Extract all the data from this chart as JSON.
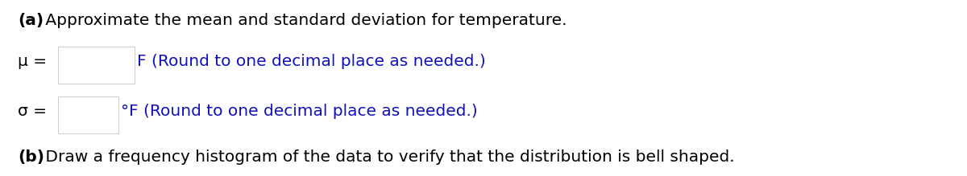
{
  "line1_bold": "(a)",
  "line1_normal": " Approximate the mean and standard deviation for temperature.",
  "mu_label": "μ =",
  "mu_suffix": "F (Round to one decimal place as needed.)",
  "sigma_label": "σ =",
  "sigma_suffix": "°F (Round to one decimal place as needed.)",
  "line4_bold": "(b)",
  "line4_normal": " Draw a frequency histogram of the data to verify that the distribution is bell shaped.",
  "background_color": "#ffffff",
  "text_color_black": "#000000",
  "text_color_blue": "#1111bb",
  "fig_width": 12.0,
  "fig_height": 2.19,
  "dpi": 100
}
